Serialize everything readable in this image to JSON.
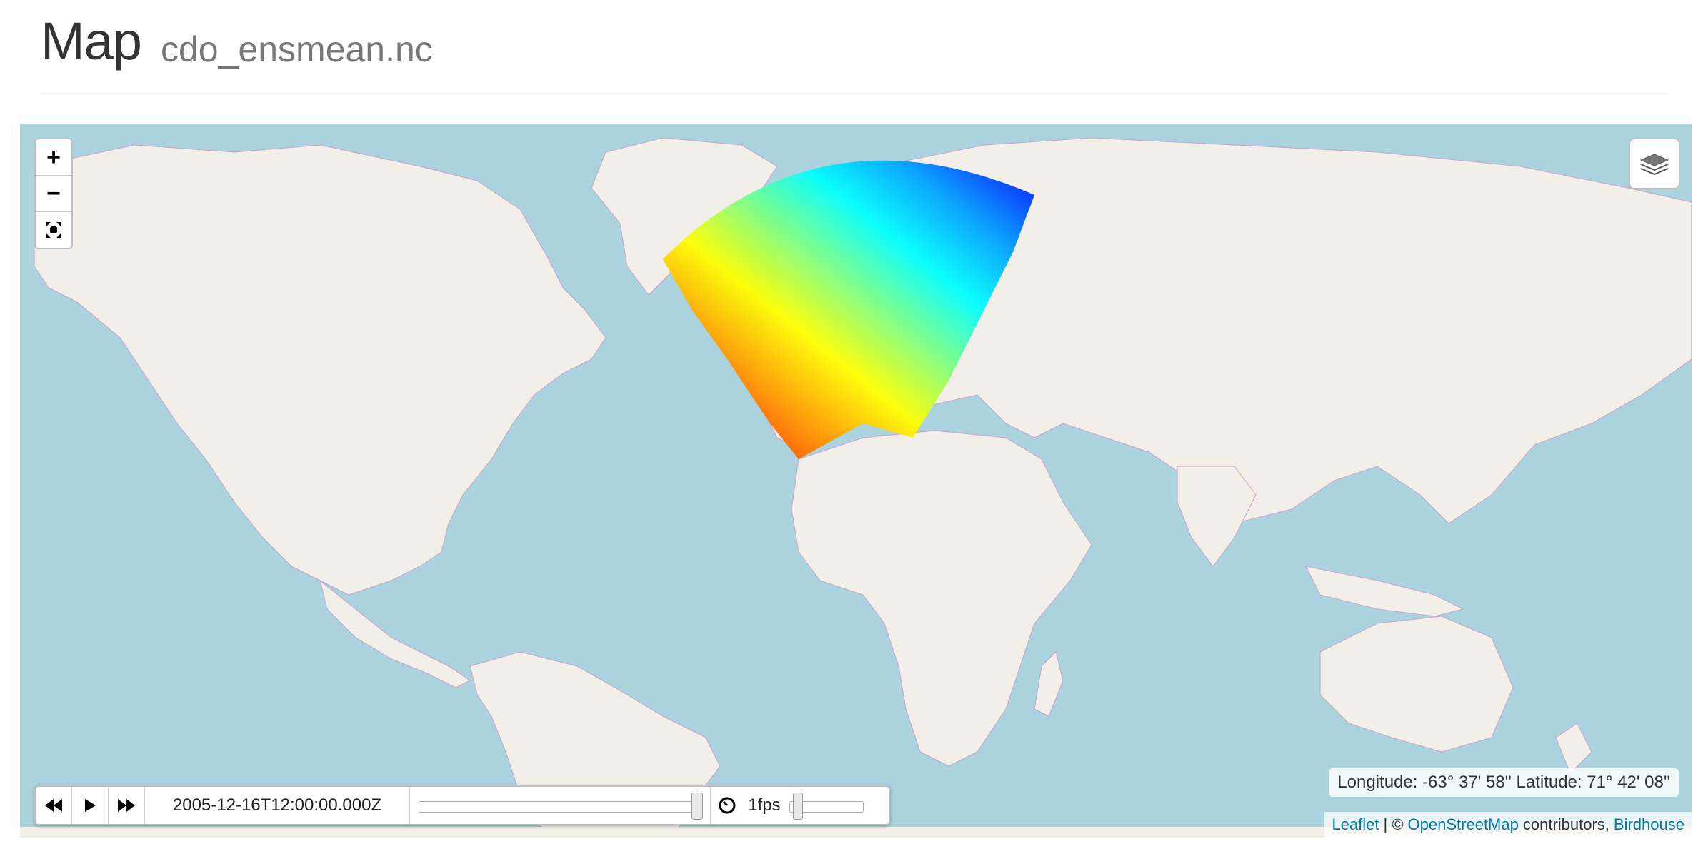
{
  "header": {
    "title": "Map",
    "subtitle": "cdo_ensmean.nc"
  },
  "map": {
    "controls": {
      "zoom_in_label": "+",
      "zoom_out_label": "−",
      "fullscreen_icon": "fullscreen-icon",
      "layers_icon": "layers-icon"
    },
    "coordinates": "Longitude: -63° 37' 58'' Latitude: 71° 42' 08''",
    "attribution": {
      "leaflet": "Leaflet",
      "separator": "| ©",
      "osm": "OpenStreetMap",
      "contributors": "contributors,",
      "birdhouse": "Birdhouse"
    },
    "colors": {
      "water": "#aad3df",
      "land": "#f2efe9",
      "borders": "#c9a3c8",
      "link": "#0078a8"
    },
    "overlay": {
      "colormap": "jet",
      "colormap_stops": [
        "#0000ff",
        "#00ffff",
        "#80ff80",
        "#ffff00",
        "#ff8000",
        "#ff0000",
        "#a00000"
      ]
    }
  },
  "timedimension": {
    "backward_icon": "step-backward-icon",
    "play_icon": "play-icon",
    "forward_icon": "step-forward-icon",
    "current_time": "2005-12-16T12:00:00.000Z",
    "time_slider_position": 1.0,
    "speed_icon": "speedometer-icon",
    "fps_label": "1fps",
    "speed_slider_position": 0.05
  }
}
